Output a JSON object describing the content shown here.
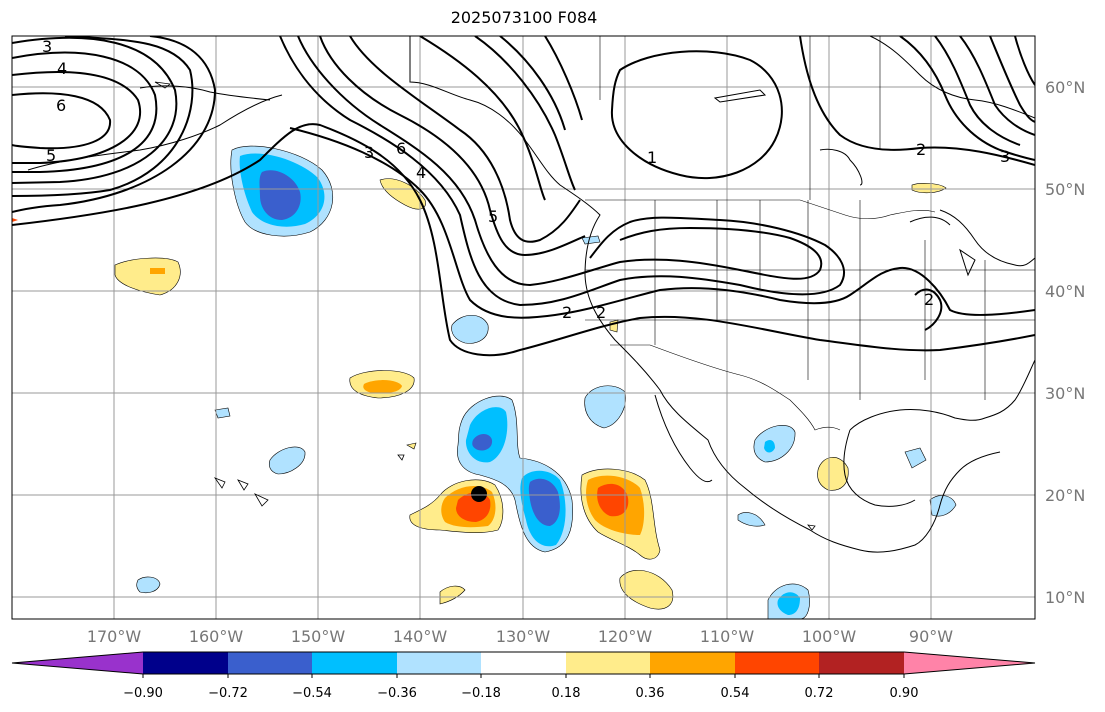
{
  "title": "2025073100 F084",
  "longitude_labels": [
    "170°W",
    "160°W",
    "150°W",
    "140°W",
    "130°W",
    "120°W",
    "110°W",
    "100°W",
    "90°W"
  ],
  "latitude_labels": [
    "60°N",
    "50°N",
    "40°N",
    "30°N",
    "20°N",
    "10°N"
  ],
  "contour_labels": [
    "3",
    "4",
    "6",
    "5",
    "3",
    "6",
    "4",
    "5",
    "2",
    "2",
    "1",
    "2",
    "2",
    "3"
  ],
  "colorbar": {
    "ticks": [
      "−0.90",
      "−0.72",
      "−0.54",
      "−0.36",
      "−0.18",
      "0.18",
      "0.36",
      "0.54",
      "0.72",
      "0.90"
    ],
    "colors": [
      "#9932cc",
      "#00008b",
      "#3a5fcd",
      "#00bfff",
      "#b0e2ff",
      "#ffffff",
      "#ffec8b",
      "#ffa500",
      "#ff4500",
      "#b22222",
      "#ff83a8"
    ]
  },
  "map": {
    "grid": true,
    "lon_range": [
      "180°W",
      "80°W"
    ],
    "lat_range": [
      "8°N",
      "65°N"
    ]
  }
}
